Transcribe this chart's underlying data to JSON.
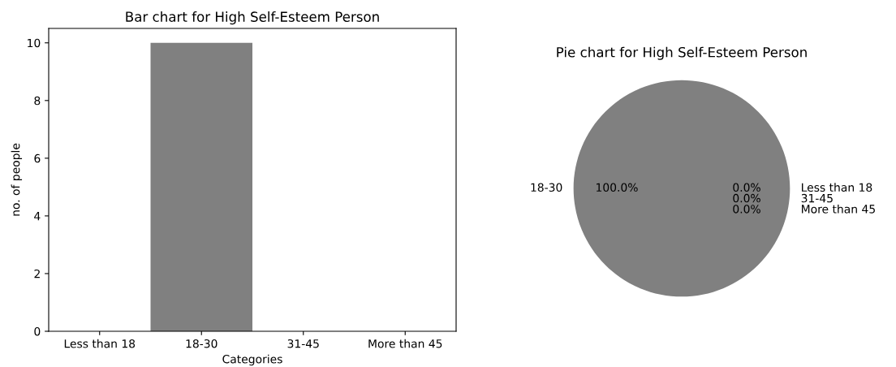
{
  "chart_data": [
    {
      "type": "bar",
      "title": "Bar chart for High Self-Esteem Person",
      "xlabel": "Categories",
      "ylabel": "no. of people",
      "categories": [
        "Less than 18",
        "18-30",
        "31-45",
        "More than 45"
      ],
      "values": [
        0,
        10,
        0,
        0
      ],
      "color": "#808080",
      "ylim": [
        0,
        10.5
      ],
      "yticks": [
        0,
        2,
        4,
        6,
        8,
        10
      ],
      "grid": false,
      "legend": false
    },
    {
      "type": "pie",
      "title": "Pie chart for High Self-Esteem Person",
      "categories": [
        "Less than 18",
        "18-30",
        "31-45",
        "More than 45"
      ],
      "values": [
        0,
        100,
        0,
        0
      ],
      "colors": [
        "#808080",
        "#808080",
        "#808080",
        "#808080"
      ],
      "value_labels": [
        "0.0%",
        "100.0%",
        "0.0%",
        "0.0%"
      ],
      "legend": false
    }
  ]
}
